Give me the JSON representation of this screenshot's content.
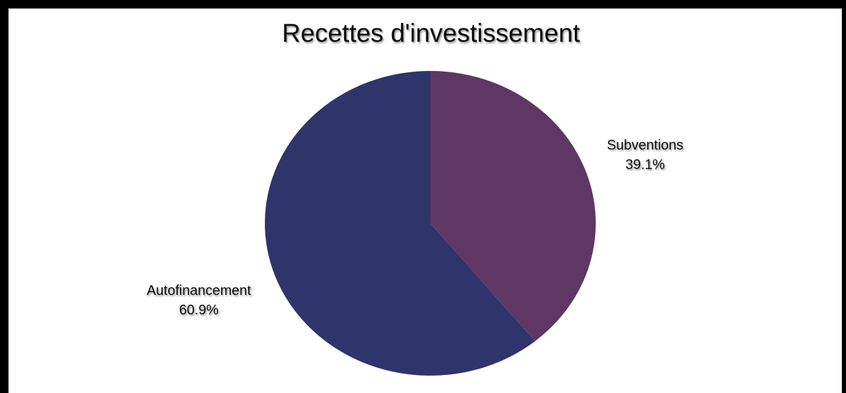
{
  "chart_data": {
    "type": "pie",
    "title": "Recettes d'investissement",
    "slices": [
      {
        "label": "Subventions",
        "percent_label": "39.1%",
        "value": 39.1,
        "color": "#5e3765"
      },
      {
        "label": "Autofinancement",
        "percent_label": "60.9%",
        "value": 60.9,
        "color": "#2f346b"
      }
    ],
    "start": "12 o'clock",
    "direction": "clockwise",
    "legend": "none"
  }
}
